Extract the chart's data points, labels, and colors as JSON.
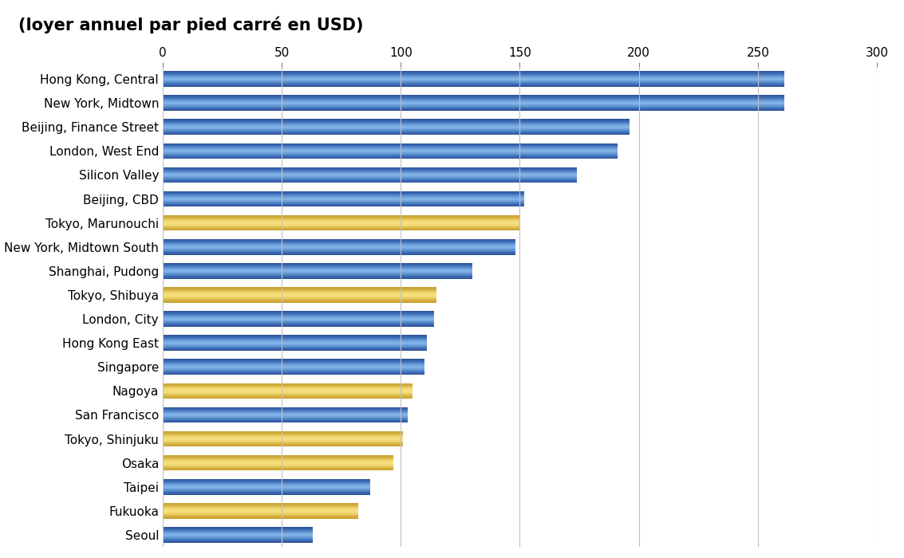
{
  "title": "(loyer annuel par pied carré en USD)",
  "categories": [
    "Hong Kong, Central",
    "New York, Midtown",
    "Beijing, Finance Street",
    "London, West End",
    "Silicon Valley",
    "Beijing, CBD",
    "Tokyo, Marunouchi",
    "New York, Midtown South",
    "Shanghai, Pudong",
    "Tokyo, Shibuya",
    "London, City",
    "Hong Kong East",
    "Singapore",
    "Nagoya",
    "San Francisco",
    "Tokyo, Shinjuku",
    "Osaka",
    "Taipei",
    "Fukuoka",
    "Seoul"
  ],
  "values": [
    261,
    261,
    196,
    191,
    174,
    152,
    150,
    148,
    130,
    115,
    114,
    111,
    110,
    105,
    103,
    101,
    97,
    87,
    82,
    63
  ],
  "colors_blue": [
    "#4472C4",
    "#5B8DD9",
    "#6FA0E0",
    "#5B8DD9",
    "#4472C4"
  ],
  "is_yellow": [
    false,
    false,
    false,
    false,
    false,
    false,
    true,
    false,
    false,
    true,
    false,
    false,
    false,
    true,
    false,
    true,
    true,
    false,
    true,
    false
  ],
  "blue_mid": "#7BA4DE",
  "blue_dark": "#2E5496",
  "blue_edge": "#3460A8",
  "yellow_mid": "#F0D870",
  "yellow_dark": "#B8962A",
  "yellow_edge": "#C8A030",
  "xlim": [
    0,
    300
  ],
  "xticks": [
    0,
    50,
    100,
    150,
    200,
    250,
    300
  ],
  "background_color": "#FFFFFF",
  "grid_color": "#C0C0C0",
  "title_fontsize": 15,
  "tick_fontsize": 11,
  "label_fontsize": 11,
  "bar_height": 0.65
}
